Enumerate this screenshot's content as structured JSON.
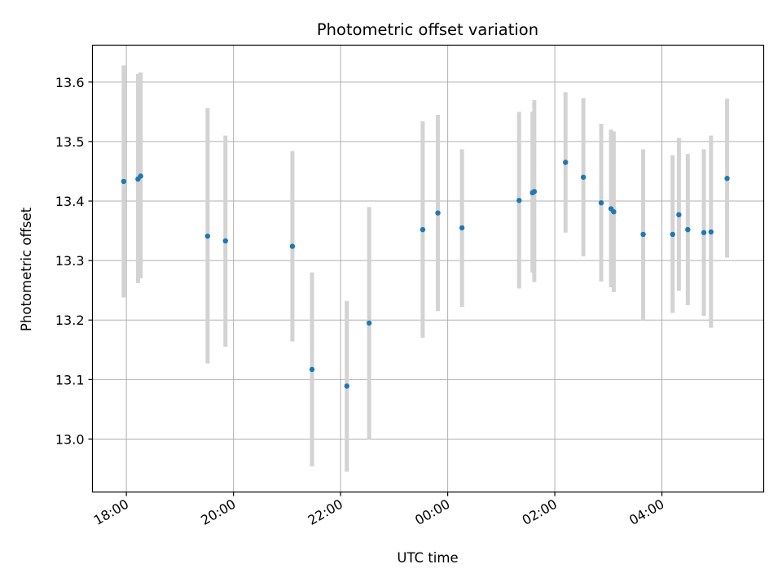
{
  "chart_data": {
    "type": "scatter",
    "title": "Photometric offset variation",
    "xlabel": "UTC time",
    "ylabel": "Photometric offset",
    "x_is_time": true,
    "x_ticks": [
      {
        "t": "2000-01-01T18:00",
        "label": "18:00"
      },
      {
        "t": "2000-01-01T20:00",
        "label": "20:00"
      },
      {
        "t": "2000-01-01T22:00",
        "label": "22:00"
      },
      {
        "t": "2000-01-02T00:00",
        "label": "00:00"
      },
      {
        "t": "2000-01-02T02:00",
        "label": "02:00"
      },
      {
        "t": "2000-01-02T04:00",
        "label": "04:00"
      }
    ],
    "xlim": [
      "2000-01-01T17:22",
      "2000-01-02T05:54"
    ],
    "y_ticks": [
      13.0,
      13.1,
      13.2,
      13.3,
      13.4,
      13.5,
      13.6
    ],
    "ylim": [
      12.911,
      13.662
    ],
    "grid": true,
    "series": [
      {
        "marker_color": "#1f77b4",
        "errorbar_color": "#d3d3d3",
        "points": [
          {
            "t": "2000-01-01T17:57",
            "y": 13.433,
            "lo": 13.238,
            "hi": 13.628
          },
          {
            "t": "2000-01-01T18:13",
            "y": 13.437,
            "lo": 13.262,
            "hi": 13.614
          },
          {
            "t": "2000-01-01T18:16",
            "y": 13.442,
            "lo": 13.27,
            "hi": 13.616
          },
          {
            "t": "2000-01-01T19:31",
            "y": 13.341,
            "lo": 13.127,
            "hi": 13.556
          },
          {
            "t": "2000-01-01T19:51",
            "y": 13.333,
            "lo": 13.155,
            "hi": 13.51
          },
          {
            "t": "2000-01-01T21:06",
            "y": 13.324,
            "lo": 13.164,
            "hi": 13.484
          },
          {
            "t": "2000-01-01T21:28",
            "y": 13.117,
            "lo": 12.954,
            "hi": 13.28
          },
          {
            "t": "2000-01-01T22:07",
            "y": 13.089,
            "lo": 12.945,
            "hi": 13.232
          },
          {
            "t": "2000-01-01T22:32",
            "y": 13.195,
            "lo": 13.0,
            "hi": 13.39
          },
          {
            "t": "2000-01-01T23:32",
            "y": 13.352,
            "lo": 13.17,
            "hi": 13.534
          },
          {
            "t": "2000-01-01T23:49",
            "y": 13.38,
            "lo": 13.215,
            "hi": 13.545
          },
          {
            "t": "2000-01-02T00:16",
            "y": 13.355,
            "lo": 13.222,
            "hi": 13.487
          },
          {
            "t": "2000-01-02T01:20",
            "y": 13.401,
            "lo": 13.253,
            "hi": 13.55
          },
          {
            "t": "2000-01-02T01:35",
            "y": 13.414,
            "lo": 13.28,
            "hi": 13.55
          },
          {
            "t": "2000-01-02T01:37",
            "y": 13.416,
            "lo": 13.264,
            "hi": 13.57
          },
          {
            "t": "2000-01-02T02:12",
            "y": 13.465,
            "lo": 13.347,
            "hi": 13.583
          },
          {
            "t": "2000-01-02T02:32",
            "y": 13.44,
            "lo": 13.307,
            "hi": 13.573
          },
          {
            "t": "2000-01-02T02:52",
            "y": 13.397,
            "lo": 13.265,
            "hi": 13.53
          },
          {
            "t": "2000-01-02T03:03",
            "y": 13.387,
            "lo": 13.255,
            "hi": 13.52
          },
          {
            "t": "2000-01-02T03:06",
            "y": 13.382,
            "lo": 13.247,
            "hi": 13.517
          },
          {
            "t": "2000-01-02T03:39",
            "y": 13.344,
            "lo": 13.2,
            "hi": 13.487
          },
          {
            "t": "2000-01-02T04:12",
            "y": 13.344,
            "lo": 13.212,
            "hi": 13.477
          },
          {
            "t": "2000-01-02T04:19",
            "y": 13.377,
            "lo": 13.249,
            "hi": 13.506
          },
          {
            "t": "2000-01-02T04:29",
            "y": 13.352,
            "lo": 13.225,
            "hi": 13.479
          },
          {
            "t": "2000-01-02T04:47",
            "y": 13.347,
            "lo": 13.207,
            "hi": 13.487
          },
          {
            "t": "2000-01-02T04:55",
            "y": 13.348,
            "lo": 13.187,
            "hi": 13.51
          },
          {
            "t": "2000-01-02T05:13",
            "y": 13.438,
            "lo": 13.305,
            "hi": 13.572
          }
        ]
      }
    ]
  }
}
